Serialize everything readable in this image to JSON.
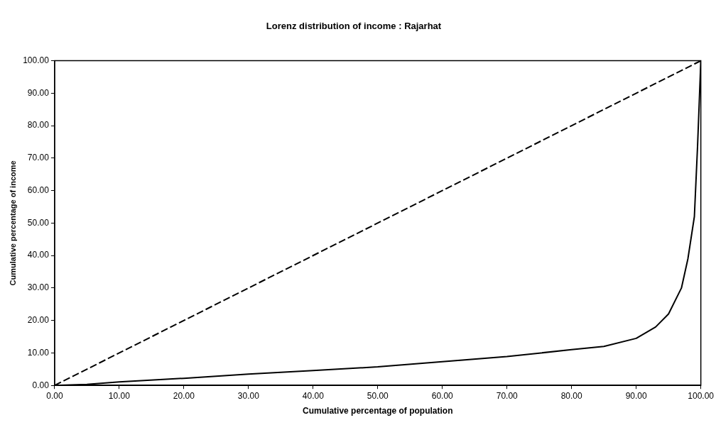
{
  "chart_data": {
    "type": "line",
    "title": "Lorenz distribution of income : Rajarhat",
    "xlabel": "Cumulative percentage of population",
    "ylabel": "Cumulative percentage of income",
    "series": [
      {
        "color": "#000000",
        "line_style": "dashed",
        "x": [
          0,
          100
        ],
        "values": [
          0,
          100
        ]
      },
      {
        "color": "#000000",
        "line_style": "solid",
        "x": [
          0,
          5,
          10,
          20,
          30,
          40,
          50,
          60,
          70,
          80,
          85,
          90,
          93,
          95,
          97,
          98,
          99,
          99.5,
          100
        ],
        "values": [
          0,
          0.3,
          1.1,
          2.2,
          3.5,
          4.6,
          5.7,
          7.3,
          8.9,
          11,
          12,
          14.5,
          18,
          22,
          30,
          39,
          52,
          74,
          100
        ]
      }
    ],
    "xlim": [
      0,
      100
    ],
    "xticks": [
      {
        "value": 0,
        "label": "0.00"
      },
      {
        "value": 10,
        "label": "10.00"
      },
      {
        "value": 20,
        "label": "20.00"
      },
      {
        "value": 30,
        "label": "30.00"
      },
      {
        "value": 40,
        "label": "40.00"
      },
      {
        "value": 50,
        "label": "50.00"
      },
      {
        "value": 60,
        "label": "60.00"
      },
      {
        "value": 70,
        "label": "70.00"
      },
      {
        "value": 80,
        "label": "80.00"
      },
      {
        "value": 90,
        "label": "90.00"
      },
      {
        "value": 100,
        "label": "100.00"
      }
    ],
    "ylim": [
      0,
      100
    ],
    "yticks": [
      {
        "value": 0,
        "label": "0.00"
      },
      {
        "value": 10,
        "label": "10.00"
      },
      {
        "value": 20,
        "label": "20.00"
      },
      {
        "value": 30,
        "label": "30.00"
      },
      {
        "value": 40,
        "label": "40.00"
      },
      {
        "value": 50,
        "label": "50.00"
      },
      {
        "value": 60,
        "label": "60.00"
      },
      {
        "value": 70,
        "label": "70.00"
      },
      {
        "value": 80,
        "label": "80.00"
      },
      {
        "value": 90,
        "label": "90.00"
      },
      {
        "value": 100,
        "label": "100.00"
      }
    ],
    "grid": false,
    "legend": false,
    "marker": "none"
  }
}
